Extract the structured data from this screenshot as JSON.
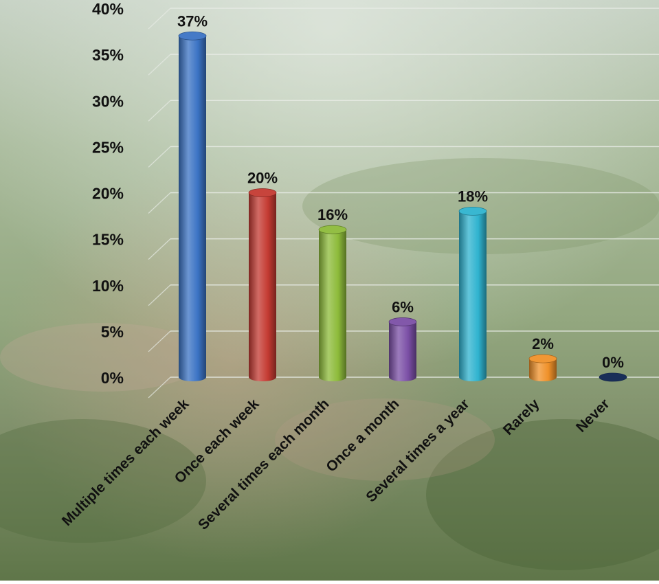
{
  "chart_data": {
    "type": "bar",
    "style": "3d-cylinder",
    "categories": [
      "Multiple times each week",
      "Once each week",
      "Several times each month",
      "Once a month",
      "Several times a year",
      "Rarely",
      "Never"
    ],
    "values": [
      37,
      20,
      16,
      6,
      18,
      2,
      0
    ],
    "value_labels": [
      "37%",
      "20%",
      "16%",
      "6%",
      "18%",
      "2%",
      "0%"
    ],
    "colors": [
      "#3b73c4",
      "#c43a32",
      "#8dbb3a",
      "#7b4fa6",
      "#2fb3cf",
      "#f09129",
      "#1f3a6e"
    ],
    "ylim": [
      0,
      40
    ],
    "yticks": [
      "0%",
      "5%",
      "10%",
      "15%",
      "20%",
      "25%",
      "30%",
      "35%",
      "40%"
    ],
    "grid": true,
    "legend": "none",
    "title": "",
    "xlabel": "",
    "ylabel": ""
  }
}
